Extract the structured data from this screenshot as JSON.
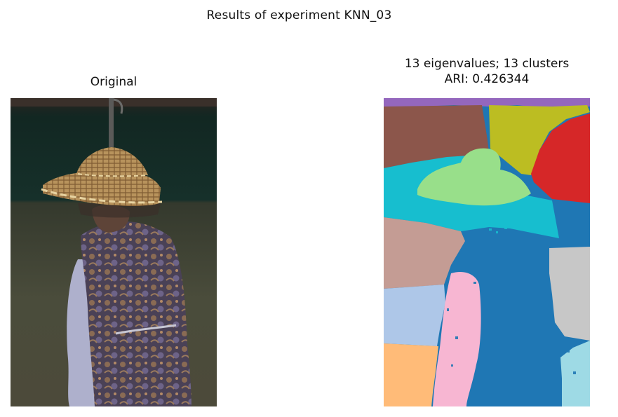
{
  "figure": {
    "suptitle": "Results of experiment KNN_03"
  },
  "panels": {
    "original": {
      "title": "Original",
      "image_subject": "photo of a person wearing a woven straw conical hat and a floral vest, seen from behind"
    },
    "segmentation": {
      "title_line1": "13 eigenvalues; 13 clusters",
      "title_line2": "ARI: 0.426344",
      "image_subject": "segmentation map colored by cluster label",
      "cluster_colors": [
        "#1f77b4",
        "#aec7e8",
        "#ffbb78",
        "#98df8a",
        "#d62728",
        "#9467bd",
        "#8c564b",
        "#c49c94",
        "#f7b6d2",
        "#c7c7c7",
        "#bcbd22",
        "#17becf",
        "#9edae5"
      ]
    }
  }
}
